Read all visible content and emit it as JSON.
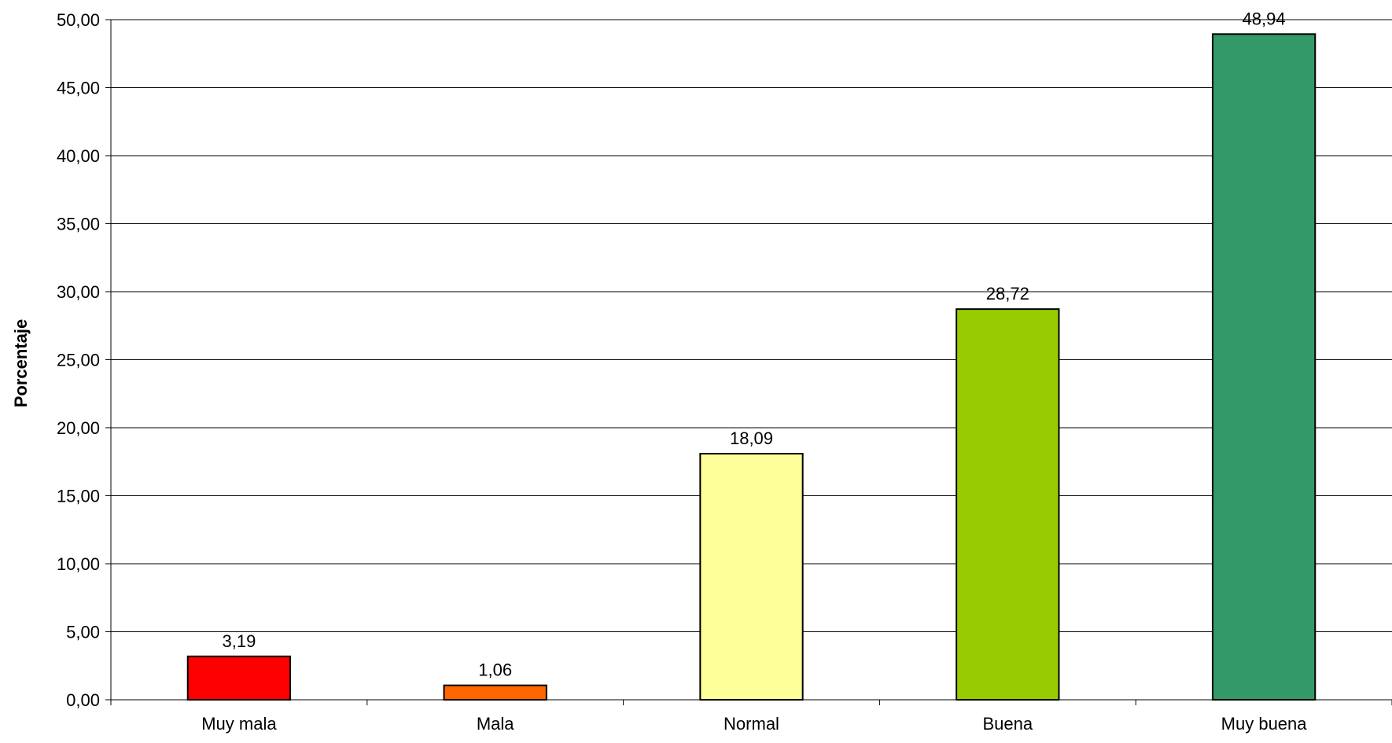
{
  "chart_data": {
    "type": "bar",
    "title": "",
    "xlabel": "",
    "ylabel": "Porcentaje",
    "ylim": [
      0,
      50
    ],
    "ytick_step": 5,
    "ytick_labels": [
      "0,00",
      "5,00",
      "10,00",
      "15,00",
      "20,00",
      "25,00",
      "30,00",
      "35,00",
      "40,00",
      "45,00",
      "50,00"
    ],
    "grid": true,
    "legend": "none",
    "categories": [
      "Muy mala",
      "Mala",
      "Normal",
      "Buena",
      "Muy buena"
    ],
    "values": [
      3.19,
      1.06,
      18.09,
      28.72,
      48.94
    ],
    "data_labels": [
      "3,19",
      "1,06",
      "18,09",
      "28,72",
      "48,94"
    ],
    "colors": [
      "#ff0000",
      "#ff6600",
      "#ffff99",
      "#99cc00",
      "#339966"
    ]
  }
}
